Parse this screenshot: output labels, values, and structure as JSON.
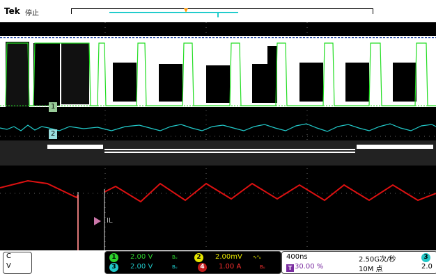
{
  "header": {
    "brand": "Tek",
    "subtitle": "停止"
  },
  "channels": [
    {
      "id": "1",
      "scale": "2.00 V",
      "bw": "Bᵤ",
      "color": "#2dd22d"
    },
    {
      "id": "2",
      "scale": "2.00mV",
      "bw": "∿ᴬᵤ",
      "color": "#e6e600"
    },
    {
      "id": "3",
      "scale": "2.00 V",
      "bw": "Bᵤ",
      "color": "#20c8c8"
    },
    {
      "id": "4",
      "scale": "1.00 A",
      "bw": "Bᵤ",
      "color": "#c01a1a"
    }
  ],
  "timebase": {
    "scale": "400ns",
    "sample_rate": "2.50G次/秒",
    "trigger_position": "30.00 %",
    "record_length": "10M 点",
    "trigger_channel": "3",
    "trigger_level": "2.0"
  },
  "trace_labels": {
    "ch1": "1",
    "ch2": "2",
    "il": "IL"
  },
  "left_panel": {
    "line1": "C",
    "line2": "V"
  },
  "colors": {
    "ch1_trace": "#22dd22",
    "ch2_trace": "#22cccc",
    "ch4_trace": "#dd1111",
    "background": "#000000"
  }
}
